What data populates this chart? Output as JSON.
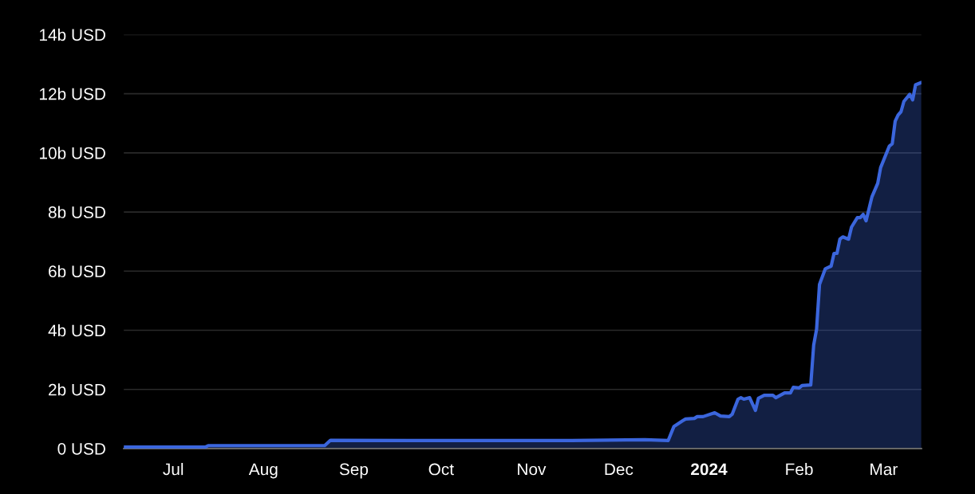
{
  "chart_data": {
    "type": "area",
    "x": [
      "2023-06-14",
      "2023-07-12",
      "2023-07-13",
      "2023-08-22",
      "2023-08-24",
      "2023-10-01",
      "2023-11-15",
      "2023-12-10",
      "2023-12-18",
      "2023-12-20",
      "2023-12-23",
      "2023-12-24",
      "2023-12-27",
      "2023-12-28",
      "2023-12-30",
      "2024-01-03",
      "2024-01-05",
      "2024-01-08",
      "2024-01-09",
      "2024-01-11",
      "2024-01-12",
      "2024-01-13",
      "2024-01-15",
      "2024-01-17",
      "2024-01-18",
      "2024-01-20",
      "2024-01-23",
      "2024-01-24",
      "2024-01-27",
      "2024-01-29",
      "2024-01-30",
      "2024-02-01",
      "2024-02-02",
      "2024-02-05",
      "2024-02-06",
      "2024-02-07",
      "2024-02-08",
      "2024-02-10",
      "2024-02-12",
      "2024-02-13",
      "2024-02-14",
      "2024-02-15",
      "2024-02-16",
      "2024-02-18",
      "2024-02-19",
      "2024-02-21",
      "2024-02-22",
      "2024-02-23",
      "2024-02-24",
      "2024-02-26",
      "2024-02-28",
      "2024-02-29",
      "2024-03-03",
      "2024-03-04",
      "2024-03-05",
      "2024-03-06",
      "2024-03-07",
      "2024-03-08",
      "2024-03-10",
      "2024-03-11",
      "2024-03-12",
      "2024-03-14"
    ],
    "series": [
      {
        "color": "#3b66dd",
        "values": [
          0.05,
          0.05,
          0.1,
          0.1,
          0.28,
          0.27,
          0.27,
          0.3,
          0.27,
          0.75,
          0.94,
          1.0,
          1.02,
          1.08,
          1.08,
          1.21,
          1.1,
          1.08,
          1.16,
          1.67,
          1.72,
          1.67,
          1.72,
          1.29,
          1.7,
          1.8,
          1.8,
          1.72,
          1.88,
          1.88,
          2.07,
          2.05,
          2.13,
          2.15,
          3.5,
          4.04,
          5.55,
          6.08,
          6.17,
          6.6,
          6.6,
          7.08,
          7.16,
          7.08,
          7.49,
          7.81,
          7.81,
          7.92,
          7.7,
          8.51,
          8.97,
          9.5,
          10.23,
          10.31,
          11.07,
          11.28,
          11.39,
          11.74,
          11.98,
          11.79,
          12.3,
          12.38
        ]
      }
    ],
    "xlim": [
      "2023-06-14",
      "2024-03-14"
    ],
    "xticks": [
      {
        "value": "2023-07-01",
        "label": "Jul"
      },
      {
        "value": "2023-08-01",
        "label": "Aug"
      },
      {
        "value": "2023-09-01",
        "label": "Sep"
      },
      {
        "value": "2023-10-01",
        "label": "Oct"
      },
      {
        "value": "2023-11-01",
        "label": "Nov"
      },
      {
        "value": "2023-12-01",
        "label": "Dec"
      },
      {
        "value": "2024-01-01",
        "label": "2024"
      },
      {
        "value": "2024-02-01",
        "label": "Feb"
      },
      {
        "value": "2024-03-01",
        "label": "Mar"
      }
    ],
    "ylim": [
      0,
      14
    ],
    "yticks": [
      {
        "value": 0,
        "label": "0 USD"
      },
      {
        "value": 2,
        "label": "2b USD"
      },
      {
        "value": 4,
        "label": "4b USD"
      },
      {
        "value": 6,
        "label": "6b USD"
      },
      {
        "value": 8,
        "label": "8b USD"
      },
      {
        "value": 10,
        "label": "10b USD"
      },
      {
        "value": 12,
        "label": "12b USD"
      },
      {
        "value": 14,
        "label": "14b USD"
      }
    ],
    "grid": "y"
  }
}
